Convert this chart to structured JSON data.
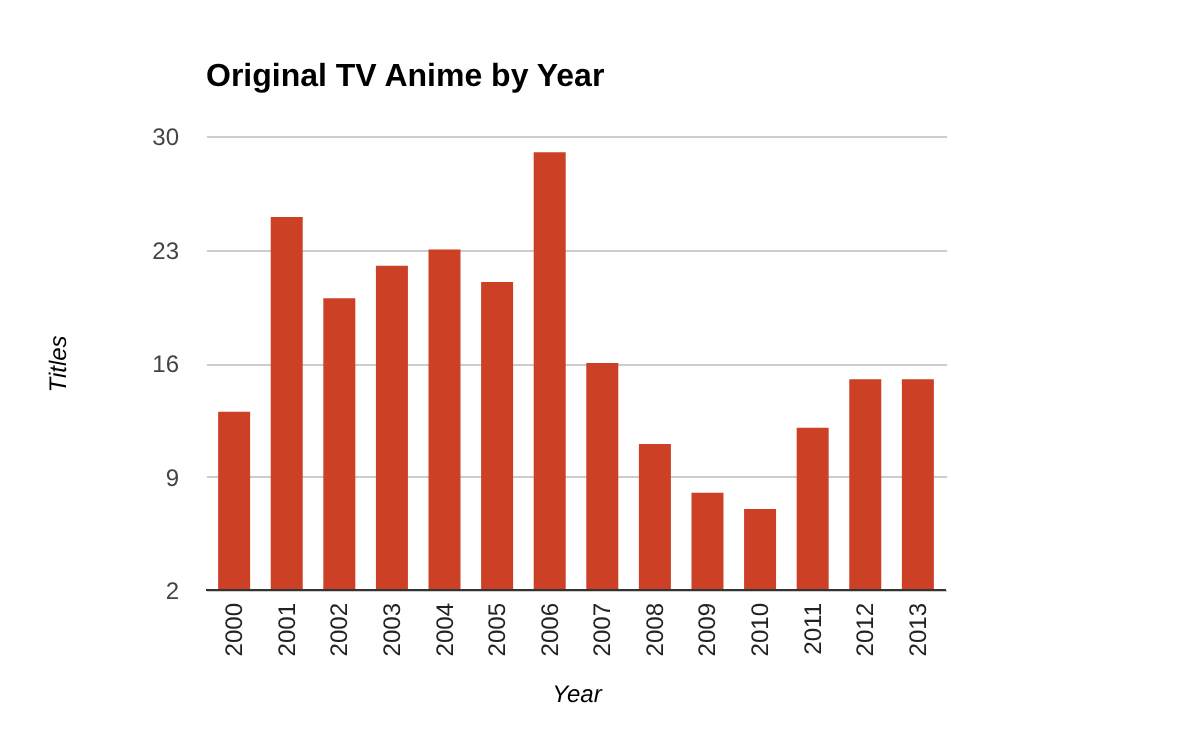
{
  "chart_data": {
    "type": "bar",
    "title": "Original TV Anime by Year",
    "xlabel": "Year",
    "ylabel": "Titles",
    "categories": [
      "2000",
      "2001",
      "2002",
      "2003",
      "2004",
      "2005",
      "2006",
      "2007",
      "2008",
      "2009",
      "2010",
      "2011",
      "2012",
      "2013"
    ],
    "values": [
      13,
      25,
      20,
      22,
      23,
      21,
      29,
      16,
      11,
      8,
      7,
      12,
      15,
      15
    ],
    "color": "#cc4125",
    "ylim": [
      2,
      30
    ],
    "yticks": [
      2,
      9,
      16,
      23,
      30
    ],
    "grid": "y"
  }
}
